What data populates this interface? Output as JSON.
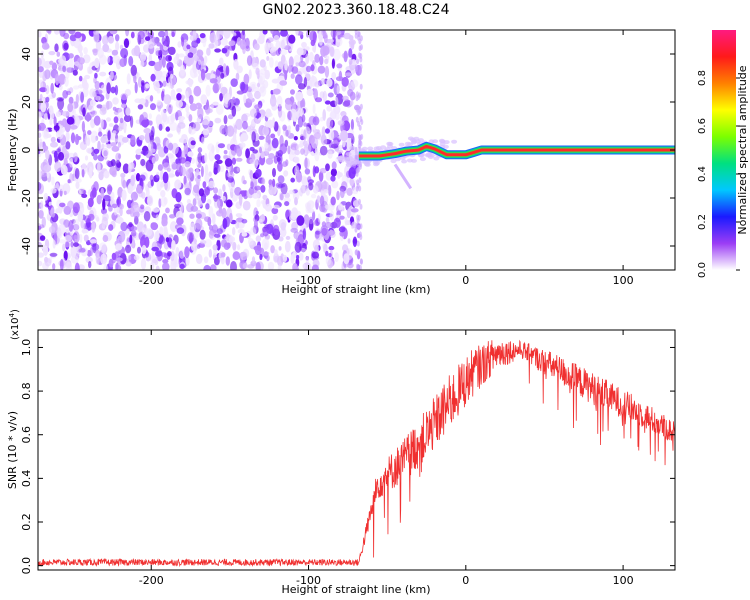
{
  "title": "GN02.2023.360.18.48.C24",
  "chart_data": [
    {
      "type": "heatmap",
      "xlabel": "Height of straight line (km)",
      "ylabel": "Frequency (Hz)",
      "xlim": [
        -272,
        133
      ],
      "ylim": [
        -50,
        50
      ],
      "x_ticks": [
        -200,
        -100,
        0,
        100
      ],
      "y_ticks": [
        -40,
        -20,
        0,
        20,
        40
      ],
      "noise_region": {
        "x": [
          -272,
          -68
        ],
        "y": [
          -50,
          50
        ]
      },
      "signal_band": [
        {
          "x": -68,
          "y": -2.5
        },
        {
          "x": -55,
          "y": -2.5
        },
        {
          "x": -45,
          "y": -1.5
        },
        {
          "x": -38,
          "y": -0.5
        },
        {
          "x": -30,
          "y": 0
        },
        {
          "x": -25,
          "y": 1.5
        },
        {
          "x": -20,
          "y": 0.5
        },
        {
          "x": -12,
          "y": -2
        },
        {
          "x": 0,
          "y": -2
        },
        {
          "x": 5,
          "y": -1
        },
        {
          "x": 10,
          "y": 0
        },
        {
          "x": 133,
          "y": 0
        }
      ],
      "colorbar": {
        "label": "Normalized spectral amplitude",
        "range": [
          0,
          1
        ],
        "ticks": [
          0.0,
          0.2,
          0.4,
          0.6,
          0.8
        ],
        "colors": [
          "#ffffff",
          "#9b3df5",
          "#1a1aff",
          "#00c8ff",
          "#00e080",
          "#7cff00",
          "#ffff00",
          "#ff8000",
          "#ff1a1a",
          "#ff1a80"
        ]
      }
    },
    {
      "type": "line",
      "xlabel": "Height of straight line (km)",
      "ylabel": "SNR (10 * v/v)",
      "y_multiplier": "(x10",
      "y_multiplier_exp": "4",
      "y_multiplier_close": ")",
      "xlim": [
        -272,
        133
      ],
      "ylim": [
        -0.02,
        1.08
      ],
      "x_ticks": [
        -200,
        -100,
        0,
        100
      ],
      "y_ticks": [
        0.0,
        0.2,
        0.4,
        0.6,
        0.8,
        1.0
      ],
      "series": [
        {
          "color": "#f03030",
          "envelope": [
            {
              "x": -272,
              "low": 0.0,
              "high": 0.03
            },
            {
              "x": -68,
              "low": 0.0,
              "high": 0.03
            },
            {
              "x": -56,
              "low": 0.3,
              "high": 0.45
            },
            {
              "x": -40,
              "low": 0.38,
              "high": 0.58
            },
            {
              "x": -25,
              "low": 0.48,
              "high": 0.72
            },
            {
              "x": -10,
              "low": 0.62,
              "high": 0.88
            },
            {
              "x": 5,
              "low": 0.78,
              "high": 1.0
            },
            {
              "x": 20,
              "low": 0.9,
              "high": 1.05
            },
            {
              "x": 35,
              "low": 0.95,
              "high": 1.03
            },
            {
              "x": 55,
              "low": 0.85,
              "high": 0.98
            },
            {
              "x": 80,
              "low": 0.74,
              "high": 0.89
            },
            {
              "x": 110,
              "low": 0.64,
              "high": 0.77
            },
            {
              "x": 133,
              "low": 0.55,
              "high": 0.66
            }
          ]
        }
      ]
    }
  ]
}
